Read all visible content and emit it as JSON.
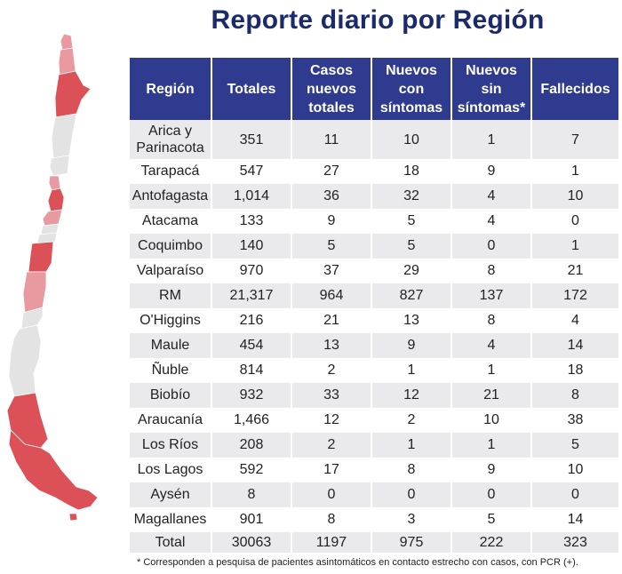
{
  "title": "Reporte diario por Región",
  "colors": {
    "title": "#1b2a6b",
    "header_bg": "#2e3b8f",
    "row_alt": "#eaeaec",
    "map_red_dark": "#dc5158",
    "map_red_light": "#e89aa0",
    "map_grey": "#e4e3e4"
  },
  "table": {
    "headers": [
      "Región",
      "Totales",
      "Casos nuevos totales",
      "Nuevos con síntomas",
      "Nuevos sin síntomas*",
      "Fallecidos"
    ],
    "rows": [
      [
        "Arica y Parinacota",
        "351",
        "11",
        "10",
        "1",
        "7"
      ],
      [
        "Tarapacá",
        "547",
        "27",
        "18",
        "9",
        "1"
      ],
      [
        "Antofagasta",
        "1,014",
        "36",
        "32",
        "4",
        "10"
      ],
      [
        "Atacama",
        "133",
        "9",
        "5",
        "4",
        "0"
      ],
      [
        "Coquimbo",
        "140",
        "5",
        "5",
        "0",
        "1"
      ],
      [
        "Valparaíso",
        "970",
        "37",
        "29",
        "8",
        "21"
      ],
      [
        "RM",
        "21,317",
        "964",
        "827",
        "137",
        "172"
      ],
      [
        "O'Higgins",
        "216",
        "21",
        "13",
        "8",
        "4"
      ],
      [
        "Maule",
        "454",
        "13",
        "9",
        "4",
        "14"
      ],
      [
        "Ñuble",
        "814",
        "2",
        "1",
        "1",
        "18"
      ],
      [
        "Biobío",
        "932",
        "33",
        "12",
        "21",
        "8"
      ],
      [
        "Araucanía",
        "1,466",
        "12",
        "2",
        "10",
        "38"
      ],
      [
        "Los Ríos",
        "208",
        "2",
        "1",
        "1",
        "5"
      ],
      [
        "Los Lagos",
        "592",
        "17",
        "8",
        "9",
        "10"
      ],
      [
        "Aysén",
        "8",
        "0",
        "0",
        "0",
        "0"
      ],
      [
        "Magallanes",
        "901",
        "8",
        "3",
        "5",
        "14"
      ]
    ],
    "total": [
      "Total",
      "30063",
      "1197",
      "975",
      "222",
      "323"
    ]
  },
  "footnote": "* Corresponden a pesquisa de pacientes asintomáticos en contacto estrecho con casos, con PCR (+)."
}
